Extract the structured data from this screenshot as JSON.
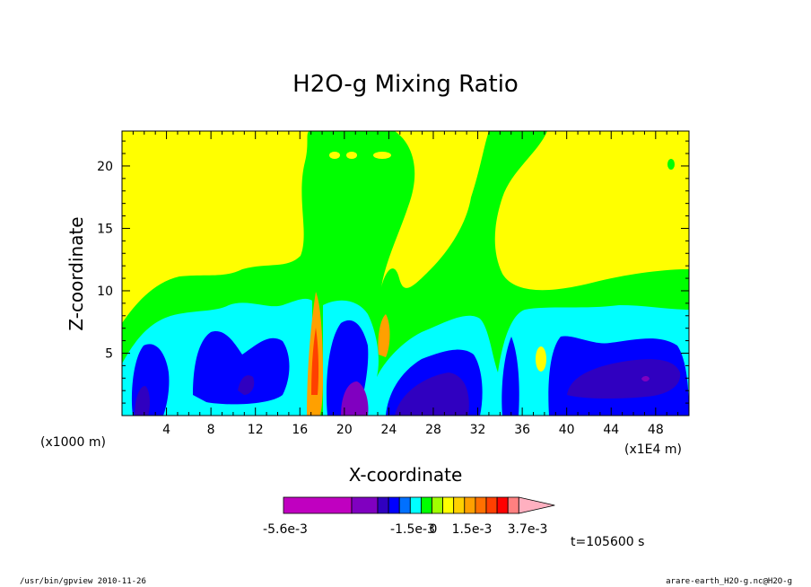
{
  "chart_data": {
    "type": "heatmap",
    "title": "H2O-g Mixing Ratio",
    "xlabel": "X-coordinate",
    "ylabel": "Z-coordinate",
    "x_ticks": [
      "4",
      "8",
      "12",
      "16",
      "20",
      "24",
      "28",
      "32",
      "36",
      "40",
      "44",
      "48"
    ],
    "y_ticks": [
      "5",
      "10",
      "15",
      "20"
    ],
    "xlim": [
      0,
      51
    ],
    "ylim": [
      0,
      22.8
    ],
    "x_multiplier_label": "(x1E4 m)",
    "y_multiplier_label": "(x1000 m)",
    "grid": false,
    "colorbar": {
      "labels": [
        "-5.6e-3",
        "-1.5e-3",
        "0",
        "1.5e-3",
        "3.7e-3"
      ],
      "colors": [
        "#c000c0",
        "#8000c0",
        "#3000c0",
        "#0000ff",
        "#0070ff",
        "#00ffff",
        "#00ff00",
        "#a0ff00",
        "#ffff00",
        "#ffd000",
        "#ffa000",
        "#ff7000",
        "#ff4000",
        "#ff0000",
        "#ff8080",
        "#ffb0c0"
      ]
    },
    "time_label": "t=105600 s"
  },
  "footer": {
    "left": "/usr/bin/gpview  2010-11-26",
    "right": "arare-earth_H2O-g.nc@H2O-g"
  }
}
